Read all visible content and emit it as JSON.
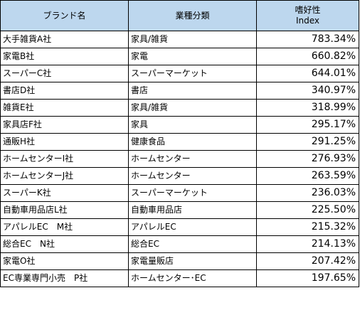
{
  "headers": {
    "brand": "ブランド名",
    "industry": "業種分類",
    "index_line1": "嗜好性",
    "index_line2": "Index"
  },
  "header_bg": "#bdd7ee",
  "rows": [
    {
      "brand": "大手雑貨A社",
      "industry": "家具/雑貨",
      "index": "783.34%"
    },
    {
      "brand": "家電B社",
      "industry": "家電",
      "index": "660.82%"
    },
    {
      "brand": "スーパーC社",
      "industry": "スーパーマーケット",
      "index": "644.01%"
    },
    {
      "brand": "書店D社",
      "industry": "書店",
      "index": "340.97%"
    },
    {
      "brand": "雑貨E社",
      "industry": "家具/雑貨",
      "index": "318.99%"
    },
    {
      "brand": "家具店F社",
      "industry": "家具",
      "index": "295.17%"
    },
    {
      "brand": "通販H社",
      "industry": "健康食品",
      "index": "291.25%"
    },
    {
      "brand": "ホームセンターI社",
      "industry": "ホームセンター",
      "index": "276.93%"
    },
    {
      "brand": "ホームセンターJ社",
      "industry": "ホームセンター",
      "index": "263.59%"
    },
    {
      "brand": "スーパーK社",
      "industry": "スーパーマーケット",
      "index": "236.03%"
    },
    {
      "brand": "自動車用品店L社",
      "industry": "自動車用品店",
      "index": "225.50%"
    },
    {
      "brand": "アパレルEC　M社",
      "industry": "アパレルEC",
      "index": "215.32%"
    },
    {
      "brand": "総合EC　N社",
      "industry": "総合EC",
      "index": "214.13%"
    },
    {
      "brand": "家電O社",
      "industry": "家電量販店",
      "index": "207.42%"
    },
    {
      "brand": "EC専業専門小売　P社",
      "industry": "ホームセンター･EC",
      "index": "197.65%"
    }
  ]
}
